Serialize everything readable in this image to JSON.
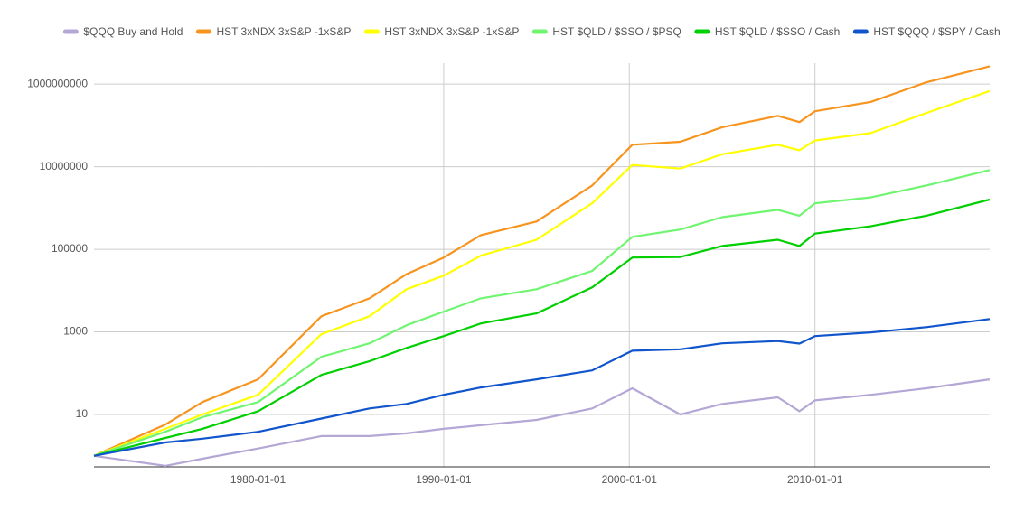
{
  "chart_data": {
    "type": "line",
    "yscale": "log",
    "grid": true,
    "legend": "top",
    "x": [
      "1971-03-01",
      "1975-01-01",
      "1977-01-01",
      "1980-01-01",
      "1983-06-01",
      "1986-01-01",
      "1988-01-01",
      "1990-01-01",
      "1992-01-01",
      "1995-01-01",
      "1998-01-01",
      "2000-03-01",
      "2002-10-01",
      "2005-01-01",
      "2008-01-01",
      "2009-03-01",
      "2010-01-01",
      "2013-01-01",
      "2016-01-01",
      "2019-06-01"
    ],
    "xlim": [
      "1971-03-01",
      "2019-06-01"
    ],
    "xticks": [
      "1980-01-01",
      "1990-01-01",
      "2000-01-01",
      "2010-01-01"
    ],
    "ylim": [
      0.54,
      3200000000
    ],
    "yticks": [
      10,
      1000,
      100000,
      10000000,
      1000000000
    ],
    "series": [
      {
        "name": "$QQQ Buy and Hold",
        "color": "#b4a7d6",
        "values": [
          1,
          0.57,
          0.85,
          1.5,
          3,
          3,
          3.5,
          4.5,
          5.5,
          7.4,
          14,
          43,
          10,
          18,
          26,
          12,
          22,
          30,
          43,
          71
        ]
      },
      {
        "name": "HST 3xNDX 3xS&P -1xS&P",
        "color": "#f6941e",
        "values": [
          1,
          5.7,
          20,
          71,
          2400,
          6500,
          25000,
          63000,
          220000,
          470000,
          3500000,
          34000000,
          40000000,
          90000000,
          170000000,
          120000000,
          220000000,
          370000000,
          1100000000,
          2700000000
        ]
      },
      {
        "name": "HST 3xNDX 3xS&P -1xS&P",
        "color": "#ffff00",
        "values": [
          1,
          4.5,
          10,
          30,
          880,
          2400,
          10800,
          23000,
          70000,
          170000,
          1300000,
          11000000,
          9000000,
          20000000,
          34000000,
          25000000,
          43000000,
          65000000,
          200000000,
          680000000
        ]
      },
      {
        "name": "HST $QLD / $SSO / $PSQ",
        "color": "#6ff56f",
        "values": [
          1,
          3.8,
          8.6,
          20,
          250,
          530,
          1450,
          3100,
          6500,
          10800,
          30000,
          200000,
          300000,
          600000,
          900000,
          650000,
          1300000,
          1800000,
          3500000,
          8300000
        ]
      },
      {
        "name": "HST $QLD / $SSO / Cash",
        "color": "#00d000",
        "values": [
          1,
          2.7,
          4.5,
          12,
          91,
          195,
          410,
          790,
          1600,
          2800,
          12000,
          63000,
          65000,
          120000,
          170000,
          120000,
          240000,
          360000,
          650000,
          1600000
        ]
      },
      {
        "name": "HST $QQQ / $SPY / Cash",
        "color": "#1155cc",
        "values": [
          1,
          2.1,
          2.6,
          3.8,
          8,
          14,
          18,
          30,
          45,
          71,
          117,
          350,
          380,
          530,
          600,
          520,
          790,
          970,
          1300,
          2050
        ]
      }
    ]
  }
}
